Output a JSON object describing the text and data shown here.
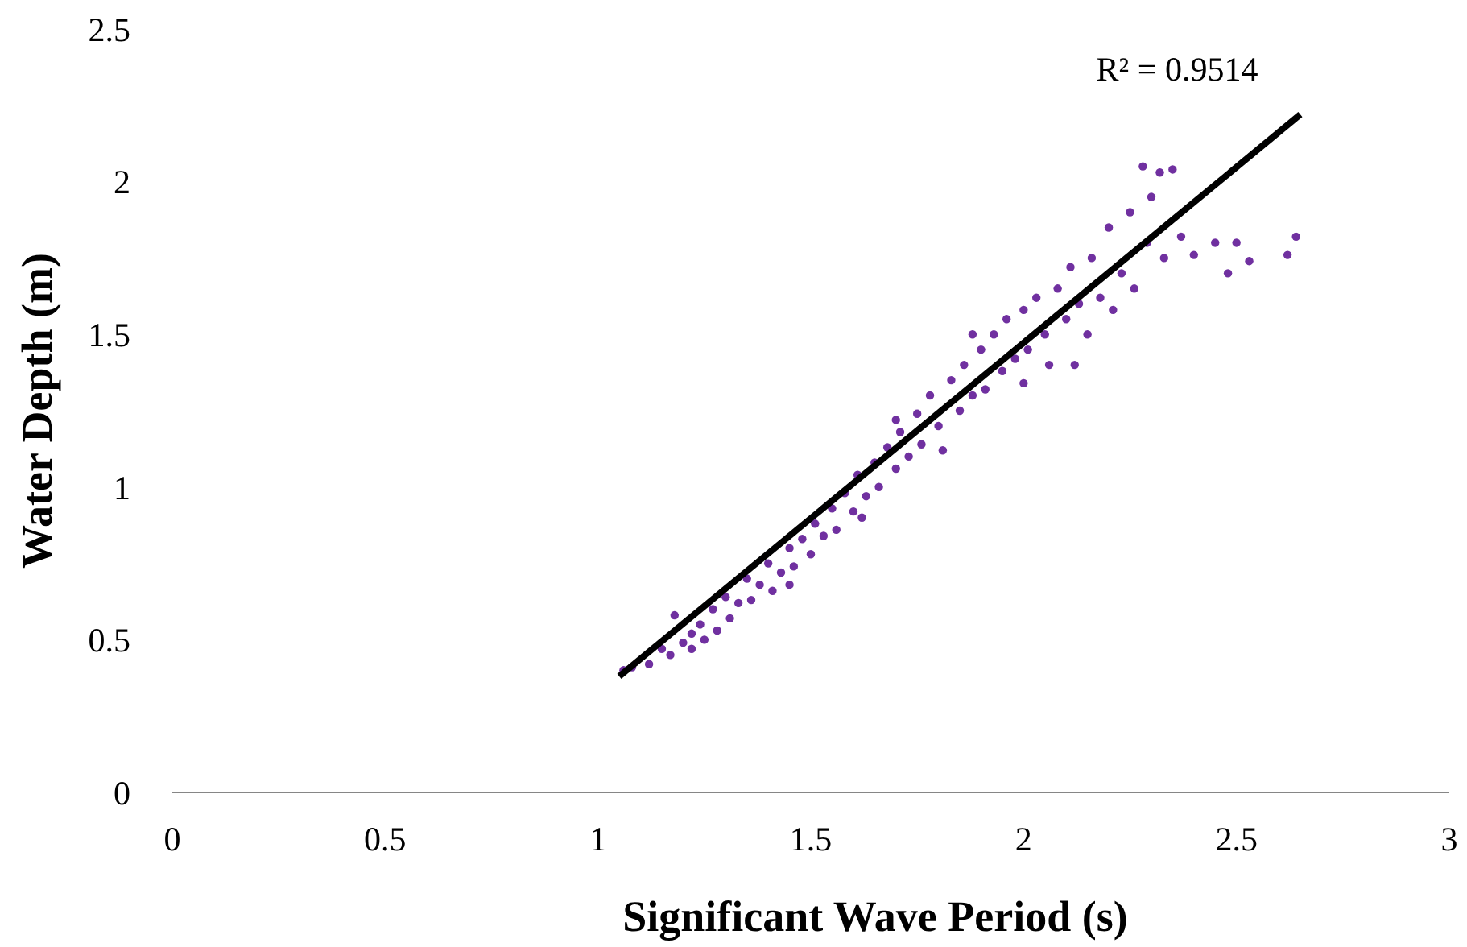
{
  "chart_data": {
    "type": "scatter",
    "xlabel": "Significant Wave Period (s)",
    "ylabel": "Water Depth (m)",
    "xlim": [
      0,
      3
    ],
    "ylim": [
      0,
      2.5
    ],
    "xticks": [
      0,
      0.5,
      1,
      1.5,
      2,
      2.5,
      3
    ],
    "yticks": [
      0,
      0.5,
      1,
      1.5,
      2,
      2.5
    ],
    "grid": false,
    "marker": "circle",
    "annotations": [
      "R² = 0.9514"
    ],
    "series": [
      {
        "color": "#7030a0",
        "x": [
          1.06,
          1.08,
          1.12,
          1.15,
          1.17,
          1.18,
          1.2,
          1.22,
          1.24,
          1.25,
          1.27,
          1.28,
          1.3,
          1.31,
          1.33,
          1.35,
          1.36,
          1.38,
          1.4,
          1.41,
          1.43,
          1.45,
          1.46,
          1.48,
          1.5,
          1.51,
          1.53,
          1.55,
          1.56,
          1.58,
          1.6,
          1.61,
          1.63,
          1.65,
          1.66,
          1.68,
          1.7,
          1.71,
          1.73,
          1.75,
          1.76,
          1.78,
          1.8,
          1.81,
          1.83,
          1.85,
          1.86,
          1.88,
          1.9,
          1.91,
          1.93,
          1.95,
          1.96,
          1.98,
          2,
          2.01,
          2.03,
          2.05,
          2.06,
          2.08,
          2.1,
          2.11,
          2.13,
          2.15,
          2.16,
          2.18,
          2.2,
          2.21,
          2.23,
          2.25,
          2.26,
          2.28,
          2.29,
          2.3,
          2.32,
          2.33,
          2.35,
          2.37,
          2.4,
          2.45,
          2.48,
          2.5,
          2.53,
          2.62,
          2.64,
          1.22,
          1.45,
          1.62,
          1.7,
          1.88,
          2,
          2.12
        ],
        "values": [
          0.4,
          0.41,
          0.42,
          0.47,
          0.45,
          0.58,
          0.49,
          0.52,
          0.55,
          0.5,
          0.6,
          0.53,
          0.64,
          0.57,
          0.62,
          0.7,
          0.63,
          0.68,
          0.75,
          0.66,
          0.72,
          0.8,
          0.74,
          0.83,
          0.78,
          0.88,
          0.84,
          0.93,
          0.86,
          0.98,
          0.92,
          1.04,
          0.97,
          1.08,
          1,
          1.13,
          1.06,
          1.18,
          1.1,
          1.24,
          1.14,
          1.3,
          1.2,
          1.12,
          1.35,
          1.25,
          1.4,
          1.3,
          1.45,
          1.32,
          1.5,
          1.38,
          1.55,
          1.42,
          1.58,
          1.45,
          1.62,
          1.5,
          1.4,
          1.65,
          1.55,
          1.72,
          1.6,
          1.5,
          1.75,
          1.62,
          1.85,
          1.58,
          1.7,
          1.9,
          1.65,
          2.05,
          1.8,
          1.95,
          2.03,
          1.75,
          2.04,
          1.82,
          1.76,
          1.8,
          1.7,
          1.8,
          1.74,
          1.76,
          1.82,
          0.47,
          0.68,
          0.9,
          1.22,
          1.5,
          1.34,
          1.4
        ]
      },
      {
        "type": "line",
        "color": "#000000",
        "marker": "none",
        "line_style": "solid",
        "x": [
          1.05,
          2.65
        ],
        "values": [
          0.38,
          2.22
        ]
      }
    ]
  }
}
